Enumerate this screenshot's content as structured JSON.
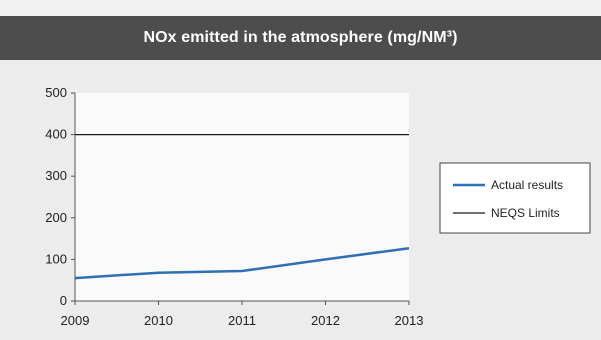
{
  "chart_data": {
    "type": "line",
    "title": "NOx emitted in the atmosphere (mg/NM³)",
    "x": [
      2009,
      2010,
      2011,
      2012,
      2013
    ],
    "xticks": [
      "2009",
      "2010",
      "2011",
      "2012",
      "2013"
    ],
    "yticks": [
      0,
      100,
      200,
      300,
      400,
      500
    ],
    "ylim": [
      0,
      500
    ],
    "grid": false,
    "legend_position": "right",
    "series": [
      {
        "name": "Actual results",
        "values": [
          55,
          68,
          72,
          100,
          127
        ],
        "color": "#2f6fb5"
      },
      {
        "name": "NEQS Limits",
        "values": [
          400,
          400,
          400,
          400,
          400
        ],
        "color": "#1a1a1a"
      }
    ]
  }
}
